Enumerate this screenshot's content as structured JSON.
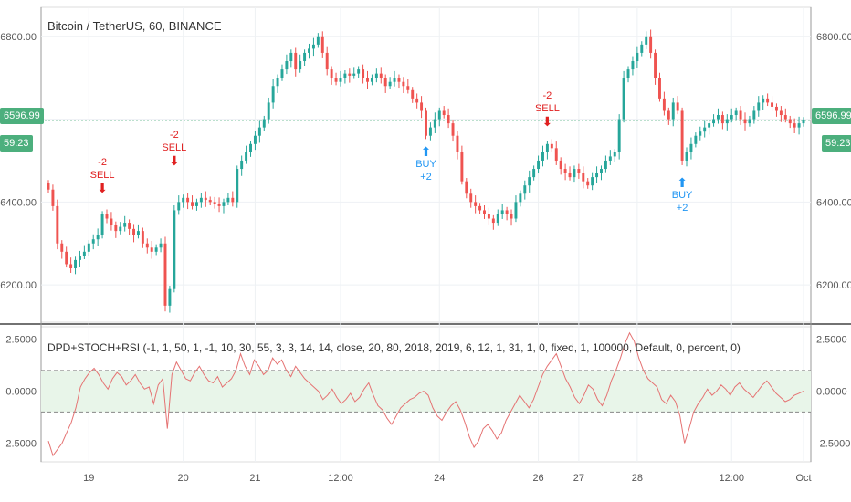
{
  "chart_data": [
    {
      "type": "candlestick",
      "title": "Bitcoin / TetherUS, 60, BINANCE",
      "x_ticks": [
        "19",
        "20",
        "21",
        "12:00",
        "24",
        "26",
        "27",
        "28",
        "12:00",
        "Oct"
      ],
      "y_ticks": [
        "6200.00",
        "6400.00",
        "6600.00",
        "6800.00"
      ],
      "y_ticks_visible": [
        "6200.00",
        "6400.00",
        "6800.00"
      ],
      "ylim": [
        6110,
        6870
      ],
      "grid": true,
      "last_price": "6596.99",
      "countdown": "59:23",
      "colors": {
        "up": "#26a69a",
        "down": "#ef5350",
        "signal_sell": "#e02020",
        "signal_buy": "#2196f3",
        "price_tag": "#4caf7d"
      },
      "signals": [
        {
          "type": "sell",
          "qty": "-2",
          "label": "SELL",
          "x_index": 12,
          "price": 6375
        },
        {
          "type": "sell",
          "qty": "-2",
          "label": "SELL",
          "x_index": 28,
          "price": 6440
        },
        {
          "type": "buy",
          "qty": "+2",
          "label": "BUY",
          "x_index": 84,
          "price": 6555
        },
        {
          "type": "sell",
          "qty": "-2",
          "label": "SELL",
          "x_index": 111,
          "price": 6535
        },
        {
          "type": "buy",
          "qty": "+2",
          "label": "BUY",
          "x_index": 141,
          "price": 6480
        }
      ],
      "close": [
        6430,
        6390,
        6300,
        6280,
        6250,
        6240,
        6260,
        6270,
        6280,
        6300,
        6310,
        6320,
        6370,
        6360,
        6345,
        6330,
        6340,
        6350,
        6335,
        6320,
        6330,
        6300,
        6290,
        6280,
        6290,
        6300,
        6150,
        6190,
        6380,
        6400,
        6410,
        6400,
        6390,
        6400,
        6410,
        6405,
        6400,
        6395,
        6390,
        6400,
        6410,
        6400,
        6480,
        6500,
        6520,
        6540,
        6560,
        6580,
        6600,
        6640,
        6680,
        6700,
        6720,
        6740,
        6760,
        6720,
        6740,
        6760,
        6770,
        6780,
        6800,
        6760,
        6720,
        6700,
        6690,
        6700,
        6710,
        6705,
        6710,
        6720,
        6700,
        6690,
        6700,
        6710,
        6700,
        6680,
        6690,
        6700,
        6690,
        6680,
        6670,
        6650,
        6640,
        6620,
        6560,
        6580,
        6600,
        6620,
        6610,
        6590,
        6560,
        6520,
        6450,
        6420,
        6400,
        6390,
        6380,
        6370,
        6360,
        6350,
        6370,
        6380,
        6370,
        6360,
        6400,
        6420,
        6440,
        6460,
        6480,
        6500,
        6520,
        6540,
        6530,
        6500,
        6480,
        6470,
        6460,
        6480,
        6470,
        6450,
        6440,
        6460,
        6470,
        6480,
        6500,
        6510,
        6520,
        6600,
        6700,
        6720,
        6740,
        6760,
        6780,
        6800,
        6760,
        6700,
        6650,
        6620,
        6600,
        6640,
        6620,
        6500,
        6520,
        6540,
        6560,
        6570,
        6580,
        6590,
        6600,
        6610,
        6590,
        6600,
        6610,
        6620,
        6600,
        6590,
        6600,
        6620,
        6640,
        6650,
        6640,
        6630,
        6620,
        6610,
        6600,
        6590,
        6580,
        6590,
        6597
      ]
    },
    {
      "type": "line",
      "title": "DPD+STOCH+RSI",
      "params": "(-1, 1, 50, 1, -1, 10, 30, 55, 3, 3, 14, 14, close, 20, 80, 2018, 2019, 6, 12, 1, 31, 1, 0, fixed, 1, 100000, Default, 0, percent, 0)",
      "y_ticks": [
        "2.5000",
        "0.0000",
        "-2.5000"
      ],
      "ylim": [
        -3.4,
        3.1
      ],
      "band": [
        -1,
        1
      ],
      "colors": {
        "line": "#e57373",
        "band": "#e8f5e9",
        "band_line": "#888888"
      },
      "values": [
        -2.4,
        -3.1,
        -2.8,
        -2.5,
        -2.0,
        -1.5,
        -0.8,
        0.2,
        0.6,
        0.9,
        1.1,
        0.8,
        0.4,
        0.1,
        0.6,
        0.9,
        0.7,
        0.3,
        0.5,
        0.8,
        0.4,
        0.1,
        0.2,
        -0.6,
        0.3,
        0.6,
        -1.8,
        0.8,
        1.4,
        1.0,
        0.6,
        0.5,
        0.9,
        1.2,
        0.8,
        0.5,
        0.4,
        0.7,
        0.2,
        0.4,
        0.6,
        1.0,
        1.8,
        1.2,
        0.8,
        1.5,
        1.2,
        0.8,
        1.0,
        1.6,
        1.3,
        1.5,
        1.0,
        0.7,
        1.2,
        0.9,
        0.6,
        0.4,
        0.2,
        0.0,
        -0.4,
        -0.2,
        0.1,
        -0.3,
        -0.6,
        -0.4,
        -0.1,
        -0.5,
        -0.3,
        0.1,
        0.4,
        -0.2,
        -0.7,
        -0.9,
        -1.3,
        -1.6,
        -1.2,
        -0.8,
        -0.6,
        -0.4,
        -0.3,
        -0.1,
        0.0,
        -0.2,
        -0.8,
        -1.2,
        -1.4,
        -1.0,
        -0.7,
        -0.5,
        -0.9,
        -1.5,
        -2.2,
        -2.7,
        -2.4,
        -1.8,
        -1.6,
        -1.9,
        -2.3,
        -2.0,
        -1.4,
        -1.0,
        -0.6,
        -0.2,
        -0.5,
        -0.8,
        -0.4,
        0.2,
        0.8,
        1.2,
        1.5,
        1.8,
        1.2,
        0.6,
        0.2,
        -0.3,
        -0.6,
        -0.2,
        0.3,
        0.1,
        -0.4,
        -0.7,
        -0.2,
        0.5,
        1.0,
        1.6,
        2.3,
        2.8,
        2.4,
        1.6,
        1.0,
        0.6,
        0.4,
        0.2,
        -0.4,
        -0.6,
        -0.2,
        -0.5,
        -1.2,
        -2.5,
        -1.8,
        -1.0,
        -0.6,
        -0.3,
        0.1,
        -0.2,
        0.0,
        0.3,
        0.1,
        -0.2,
        0.2,
        0.4,
        0.1,
        -0.1,
        -0.3,
        0.0,
        0.3,
        0.5,
        0.2,
        -0.1,
        -0.3,
        -0.5,
        -0.4,
        -0.2,
        -0.1,
        0.0
      ]
    }
  ]
}
